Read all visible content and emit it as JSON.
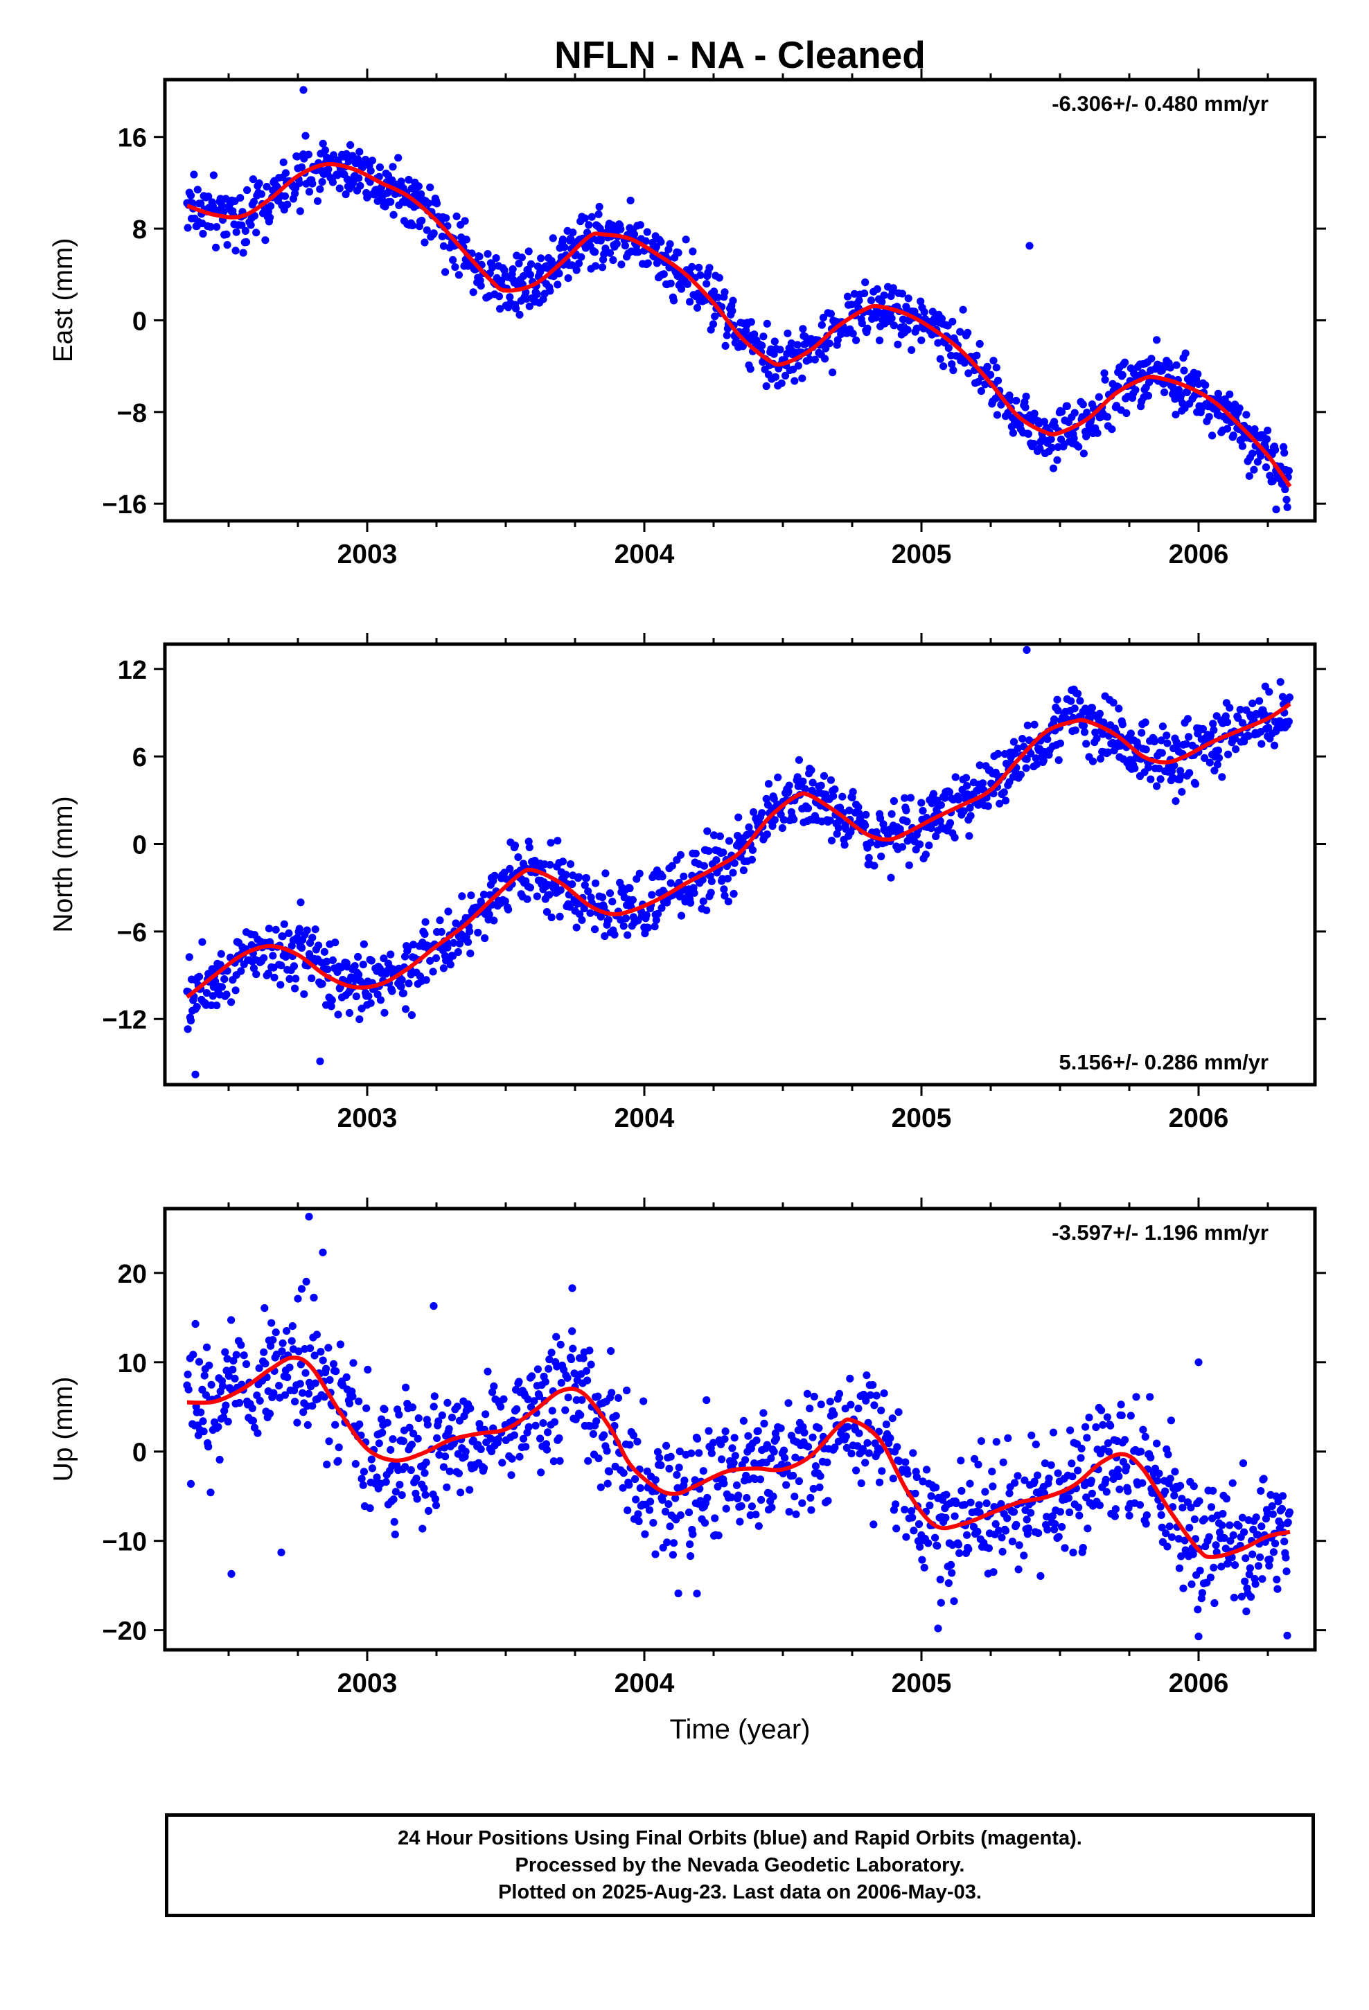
{
  "title": "NFLN  - NA - Cleaned",
  "xlabel": "Time (year)",
  "footer": [
    "24 Hour Positions Using Final Orbits (blue) and Rapid Orbits (magenta).",
    "Processed by the Nevada Geodetic Laboratory.",
    "Plotted on 2025-Aug-23. Last data on 2006-May-03."
  ],
  "colors": {
    "observations": "#0000ff",
    "model": "#ff0000",
    "frame": "#000000"
  },
  "chart_data": [
    {
      "type": "scatter",
      "panel": "east",
      "ylabel": "East (mm)",
      "rate_text": "-6.306+/- 0.480 mm/yr",
      "rate_position": "top-right",
      "xlim": [
        2002.27,
        2006.42
      ],
      "ylim": [
        -17.5,
        21.0
      ],
      "xticks": [
        2003,
        2004,
        2005,
        2006
      ],
      "xtick_labels": [
        "2003",
        "2004",
        "2005",
        "2006"
      ],
      "yticks": [
        16,
        8,
        0,
        -8,
        -16
      ],
      "ytick_labels": [
        "16",
        "8",
        "0",
        "−8",
        "−16"
      ],
      "grid": false,
      "series": [
        {
          "style": "points",
          "model": [
            [
              2002.35,
              10.0
            ],
            [
              2002.45,
              9.2
            ],
            [
              2002.55,
              9.1
            ],
            [
              2002.65,
              10.6
            ],
            [
              2002.75,
              12.6
            ],
            [
              2002.85,
              13.6
            ],
            [
              2002.95,
              13.2
            ],
            [
              2003.05,
              12.0
            ],
            [
              2003.15,
              10.8
            ],
            [
              2003.25,
              8.7
            ],
            [
              2003.35,
              6.0
            ],
            [
              2003.45,
              3.4
            ],
            [
              2003.5,
              2.6
            ],
            [
              2003.6,
              3.1
            ],
            [
              2003.7,
              5.0
            ],
            [
              2003.8,
              7.3
            ],
            [
              2003.85,
              7.5
            ],
            [
              2003.95,
              7.1
            ],
            [
              2004.05,
              5.7
            ],
            [
              2004.15,
              4.0
            ],
            [
              2004.25,
              1.5
            ],
            [
              2004.35,
              -1.5
            ],
            [
              2004.45,
              -3.5
            ],
            [
              2004.5,
              -3.8
            ],
            [
              2004.6,
              -2.6
            ],
            [
              2004.7,
              -0.5
            ],
            [
              2004.8,
              1.0
            ],
            [
              2004.85,
              1.2
            ],
            [
              2004.95,
              0.5
            ],
            [
              2005.05,
              -0.9
            ],
            [
              2005.15,
              -2.8
            ],
            [
              2005.25,
              -5.5
            ],
            [
              2005.35,
              -8.4
            ],
            [
              2005.45,
              -9.8
            ],
            [
              2005.5,
              -9.8
            ],
            [
              2005.6,
              -8.6
            ],
            [
              2005.7,
              -6.4
            ],
            [
              2005.8,
              -5.1
            ],
            [
              2005.85,
              -5.0
            ],
            [
              2005.95,
              -5.7
            ],
            [
              2006.05,
              -7.0
            ],
            [
              2006.15,
              -9.2
            ],
            [
              2006.25,
              -11.8
            ],
            [
              2006.33,
              -14.5
            ]
          ],
          "noise": 1.3,
          "outliers": [
            [
              2002.77,
              20.1
            ],
            [
              2005.39,
              6.5
            ],
            [
              2006.28,
              -16.5
            ]
          ]
        },
        {
          "style": "line",
          "name": ""
        }
      ]
    },
    {
      "type": "scatter",
      "panel": "north",
      "ylabel": "North (mm)",
      "rate_text": "5.156+/- 0.286 mm/yr",
      "rate_position": "bottom-right",
      "xlim": [
        2002.27,
        2006.42
      ],
      "ylim": [
        -16.5,
        13.7
      ],
      "xticks": [
        2003,
        2004,
        2005,
        2006
      ],
      "xtick_labels": [
        "2003",
        "2004",
        "2005",
        "2006"
      ],
      "yticks": [
        12,
        6,
        0,
        -6,
        -12
      ],
      "ytick_labels": [
        "12",
        "6",
        "0",
        "−6",
        "−12"
      ],
      "grid": false,
      "series": [
        {
          "style": "points",
          "model": [
            [
              2002.35,
              -10.5
            ],
            [
              2002.45,
              -9.0
            ],
            [
              2002.55,
              -7.6
            ],
            [
              2002.65,
              -7.0
            ],
            [
              2002.75,
              -7.6
            ],
            [
              2002.85,
              -9.0
            ],
            [
              2002.95,
              -9.8
            ],
            [
              2003.05,
              -9.6
            ],
            [
              2003.15,
              -8.5
            ],
            [
              2003.25,
              -7.0
            ],
            [
              2003.35,
              -5.6
            ],
            [
              2003.45,
              -3.8
            ],
            [
              2003.55,
              -2.1
            ],
            [
              2003.6,
              -1.8
            ],
            [
              2003.7,
              -2.7
            ],
            [
              2003.8,
              -4.2
            ],
            [
              2003.88,
              -4.8
            ],
            [
              2003.95,
              -4.6
            ],
            [
              2004.05,
              -3.8
            ],
            [
              2004.15,
              -2.7
            ],
            [
              2004.25,
              -1.7
            ],
            [
              2004.35,
              -0.5
            ],
            [
              2004.45,
              1.8
            ],
            [
              2004.55,
              3.3
            ],
            [
              2004.6,
              3.3
            ],
            [
              2004.7,
              2.1
            ],
            [
              2004.8,
              0.7
            ],
            [
              2004.88,
              0.3
            ],
            [
              2004.95,
              0.8
            ],
            [
              2005.05,
              1.8
            ],
            [
              2005.15,
              2.7
            ],
            [
              2005.25,
              3.7
            ],
            [
              2005.35,
              5.8
            ],
            [
              2005.45,
              7.7
            ],
            [
              2005.55,
              8.4
            ],
            [
              2005.6,
              8.4
            ],
            [
              2005.7,
              7.5
            ],
            [
              2005.8,
              6.0
            ],
            [
              2005.88,
              5.6
            ],
            [
              2005.95,
              6.0
            ],
            [
              2006.05,
              7.0
            ],
            [
              2006.15,
              7.8
            ],
            [
              2006.25,
              8.6
            ],
            [
              2006.33,
              9.6
            ]
          ],
          "noise": 1.1,
          "outliers": [
            [
              2002.38,
              -15.8
            ],
            [
              2002.83,
              -14.9
            ],
            [
              2005.38,
              13.3
            ],
            [
              2002.76,
              -4.0
            ]
          ]
        },
        {
          "style": "line",
          "name": ""
        }
      ]
    },
    {
      "type": "scatter",
      "panel": "up",
      "ylabel": "Up (mm)",
      "rate_text": "-3.597+/- 1.196 mm/yr",
      "rate_position": "top-right",
      "xlim": [
        2002.27,
        2006.42
      ],
      "ylim": [
        -22.2,
        27.2
      ],
      "xticks": [
        2003,
        2004,
        2005,
        2006
      ],
      "xtick_labels": [
        "2003",
        "2004",
        "2005",
        "2006"
      ],
      "yticks": [
        20,
        10,
        0,
        -10,
        -20
      ],
      "ytick_labels": [
        "20",
        "10",
        "0",
        "−10",
        "−20"
      ],
      "grid": false,
      "series": [
        {
          "style": "points",
          "model": [
            [
              2002.35,
              5.5
            ],
            [
              2002.45,
              5.6
            ],
            [
              2002.55,
              7.0
            ],
            [
              2002.65,
              9.2
            ],
            [
              2002.73,
              10.5
            ],
            [
              2002.8,
              9.4
            ],
            [
              2002.9,
              4.5
            ],
            [
              2003.0,
              0.3
            ],
            [
              2003.1,
              -1.0
            ],
            [
              2003.2,
              -0.2
            ],
            [
              2003.3,
              1.3
            ],
            [
              2003.4,
              2.0
            ],
            [
              2003.5,
              2.5
            ],
            [
              2003.6,
              4.5
            ],
            [
              2003.7,
              6.8
            ],
            [
              2003.78,
              6.5
            ],
            [
              2003.88,
              2.5
            ],
            [
              2003.95,
              -1.5
            ],
            [
              2004.05,
              -4.2
            ],
            [
              2004.12,
              -4.7
            ],
            [
              2004.2,
              -3.6
            ],
            [
              2004.3,
              -2.2
            ],
            [
              2004.4,
              -1.9
            ],
            [
              2004.5,
              -2.0
            ],
            [
              2004.6,
              -0.5
            ],
            [
              2004.7,
              2.8
            ],
            [
              2004.75,
              3.5
            ],
            [
              2004.85,
              1.3
            ],
            [
              2004.95,
              -4.5
            ],
            [
              2005.05,
              -8.3
            ],
            [
              2005.15,
              -8.1
            ],
            [
              2005.25,
              -6.9
            ],
            [
              2005.35,
              -5.7
            ],
            [
              2005.45,
              -5.1
            ],
            [
              2005.55,
              -3.8
            ],
            [
              2005.65,
              -1.2
            ],
            [
              2005.73,
              -0.3
            ],
            [
              2005.8,
              -2.0
            ],
            [
              2005.9,
              -6.8
            ],
            [
              2006.0,
              -11.0
            ],
            [
              2006.05,
              -11.8
            ],
            [
              2006.15,
              -11.0
            ],
            [
              2006.25,
              -9.5
            ],
            [
              2006.33,
              -9.0
            ]
          ],
          "noise": 3.6,
          "outliers": [
            [
              2002.79,
              26.3
            ],
            [
              2002.84,
              22.3
            ],
            [
              2002.51,
              -13.7
            ],
            [
              2003.74,
              18.3
            ],
            [
              2004.19,
              -15.9
            ],
            [
              2006.0,
              10.0
            ],
            [
              2006.0,
              -20.7
            ],
            [
              2005.06,
              -19.8
            ],
            [
              2006.32,
              -20.6
            ],
            [
              2003.24,
              16.3
            ],
            [
              2004.04,
              -11.5
            ],
            [
              2002.69,
              -11.3
            ]
          ]
        },
        {
          "style": "line",
          "name": ""
        }
      ]
    }
  ]
}
